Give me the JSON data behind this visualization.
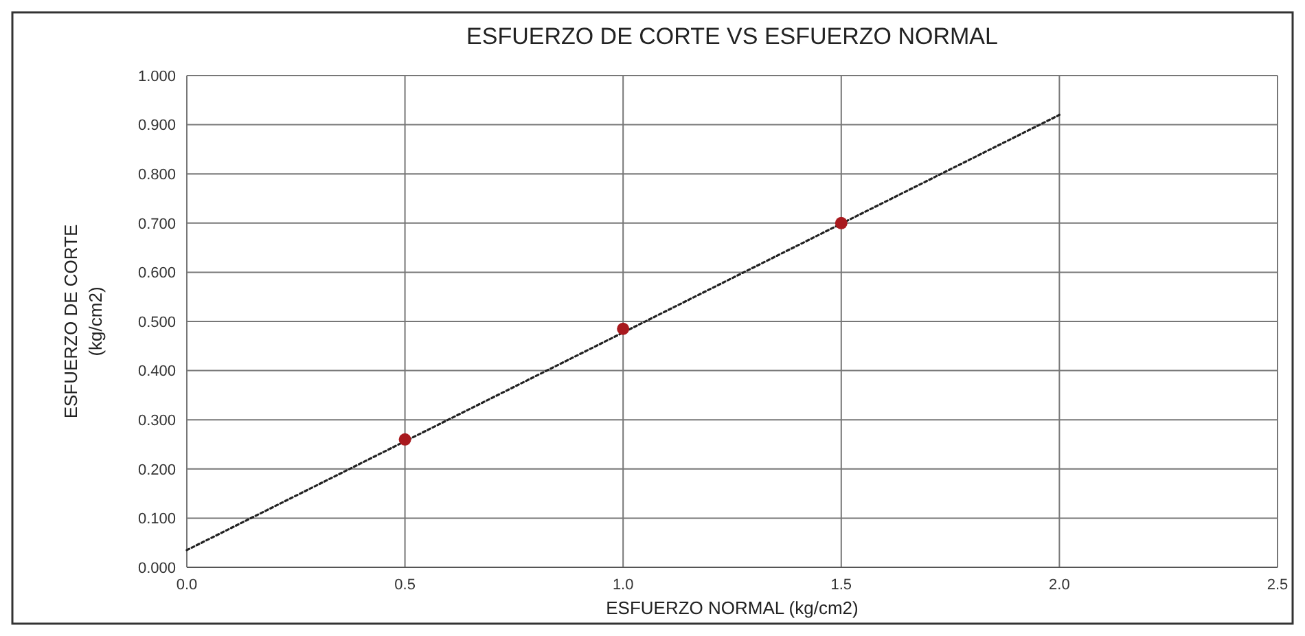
{
  "chart_data": {
    "type": "scatter",
    "title": "ESFUERZO DE CORTE VS ESFUERZO NORMAL",
    "xlabel": "ESFUERZO NORMAL (kg/cm2)",
    "ylabel": "ESFUERZO DE CORTE\n(kg/cm2)",
    "series": [
      {
        "color": "#a8191e",
        "x": [
          0.5,
          1.0,
          1.5
        ],
        "values": [
          0.26,
          0.485,
          0.7
        ],
        "marker": "circle"
      },
      {
        "type": "line",
        "color": "#222222",
        "x": [
          0,
          2.0
        ],
        "values": [
          0.035,
          0.92
        ],
        "line_style": "dotted"
      }
    ],
    "xlim": [
      0,
      2.5
    ],
    "xticks": [
      {
        "value": 0,
        "label": "0.0"
      },
      {
        "value": 0.5,
        "label": "0.5"
      },
      {
        "value": 1,
        "label": "1.0"
      },
      {
        "value": 1.5,
        "label": "1.5"
      },
      {
        "value": 2,
        "label": "2.0"
      },
      {
        "value": 2.5,
        "label": "2.5"
      }
    ],
    "ylim": [
      0,
      1
    ],
    "yticks": [
      {
        "value": 0,
        "label": "0.000"
      },
      {
        "value": 0.1,
        "label": "0.100"
      },
      {
        "value": 0.2,
        "label": "0.200"
      },
      {
        "value": 0.3,
        "label": "0.300"
      },
      {
        "value": 0.4,
        "label": "0.400"
      },
      {
        "value": 0.5,
        "label": "0.500"
      },
      {
        "value": 0.6,
        "label": "0.600"
      },
      {
        "value": 0.7,
        "label": "0.700"
      },
      {
        "value": 0.8,
        "label": "0.800"
      },
      {
        "value": 0.9,
        "label": "0.900"
      },
      {
        "value": 1,
        "label": "1.000"
      }
    ],
    "grid": true
  }
}
